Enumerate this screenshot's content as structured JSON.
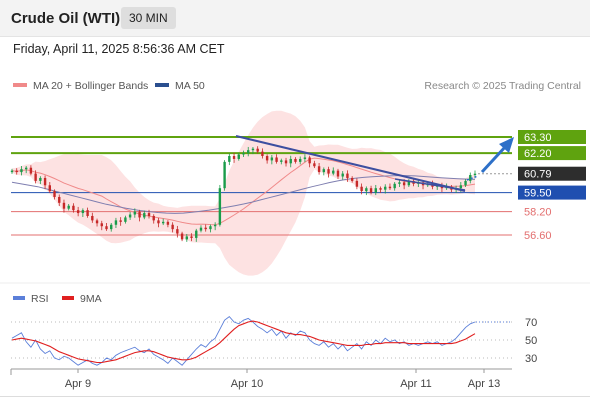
{
  "header": {
    "title": "Crude Oil (WTI)",
    "interval": "30 MIN"
  },
  "datetime": "Friday, April 11, 2025 8:56:36 AM CET",
  "legend": {
    "bb_label": "MA 20 + Bollinger Bands",
    "ma50_label": "MA 50",
    "copyright": "Research © 2025 Trading Central",
    "bb_color": "#f08a8a",
    "ma50_color": "#2b4f8f"
  },
  "rsi_legend": {
    "rsi_label": "RSI",
    "ma_label": "9MA",
    "rsi_color": "#5b7fd9",
    "ma_color": "#e02020"
  },
  "colors": {
    "up": "#1a9c4a",
    "down": "#c62828",
    "resistance": "#5fa30f",
    "support_blue": "#1f4fb0",
    "support_red": "#e36f6f",
    "band_fill": "#fde2e2"
  },
  "chart_data": [
    {
      "type": "candlestick",
      "x_ticks": [
        "Apr 9",
        "Apr 10",
        "Apr 11",
        "Apr 13"
      ],
      "ylim": [
        54.5,
        64.5
      ],
      "current_price": 60.79,
      "levels": [
        {
          "value": 63.3,
          "label": "63.30",
          "kind": "resistance"
        },
        {
          "value": 62.2,
          "label": "62.20",
          "kind": "resistance"
        },
        {
          "value": 59.5,
          "label": "59.50",
          "kind": "pivot"
        },
        {
          "value": 58.2,
          "label": "58.20",
          "kind": "support"
        },
        {
          "value": 56.6,
          "label": "56.60",
          "kind": "support"
        }
      ],
      "closes": [
        61.0,
        60.9,
        61.1,
        61.2,
        60.8,
        60.3,
        60.5,
        60.0,
        59.6,
        59.2,
        58.8,
        58.4,
        58.6,
        58.3,
        58.1,
        58.3,
        57.9,
        57.6,
        57.4,
        57.2,
        57.0,
        57.3,
        57.6,
        57.5,
        57.8,
        58.0,
        58.2,
        57.8,
        58.1,
        57.9,
        57.6,
        57.4,
        57.5,
        57.3,
        57.0,
        56.7,
        56.3,
        56.5,
        56.4,
        56.9,
        57.1,
        57.0,
        57.2,
        57.3,
        59.8,
        61.6,
        62.0,
        61.8,
        62.1,
        62.2,
        62.4,
        62.5,
        62.3,
        62.0,
        61.7,
        61.9,
        61.6,
        61.7,
        61.5,
        61.8,
        61.6,
        61.8,
        61.9,
        61.5,
        61.3,
        60.9,
        61.1,
        60.8,
        61.0,
        60.6,
        60.8,
        60.5,
        60.3,
        59.9,
        59.6,
        59.8,
        59.5,
        59.8,
        59.7,
        59.9,
        59.8,
        60.1,
        60.2,
        60.0,
        60.3,
        60.1,
        60.2,
        60.0,
        60.1,
        59.9,
        60.0,
        59.8,
        59.9,
        59.7,
        59.8,
        60.0,
        60.3,
        60.7,
        60.79
      ],
      "ma50": [
        60.2,
        60.1,
        60.0,
        59.9,
        59.75,
        59.6,
        59.45,
        59.3,
        59.15,
        59.0,
        58.85,
        58.7,
        58.58,
        58.46,
        58.36,
        58.27,
        58.2,
        58.14,
        58.1,
        58.08,
        58.1,
        58.15,
        58.22,
        58.3,
        58.4,
        58.5,
        58.6,
        58.72,
        58.85,
        59.0,
        59.15,
        59.3,
        59.45,
        59.6,
        59.75,
        59.9,
        60.04,
        60.18,
        60.3,
        60.4,
        60.48,
        60.54,
        60.58,
        60.62,
        60.64,
        60.66,
        60.66,
        60.64,
        60.6,
        60.56,
        60.52,
        60.48,
        60.45,
        60.42,
        60.4
      ],
      "rsi": {
        "levels": [
          70,
          50,
          30
        ],
        "rsi_values": [
          52,
          55,
          58,
          48,
          42,
          50,
          40,
          35,
          38,
          30,
          28,
          32,
          30,
          26,
          22,
          25,
          28,
          24,
          22,
          25,
          30,
          28,
          33,
          36,
          38,
          40,
          42,
          38,
          36,
          40,
          34,
          31,
          28,
          24,
          30,
          26,
          22,
          28,
          34,
          40,
          45,
          42,
          48,
          52,
          62,
          72,
          76,
          70,
          68,
          72,
          74,
          70,
          65,
          62,
          58,
          62,
          55,
          60,
          52,
          58,
          55,
          60,
          58,
          50,
          46,
          44,
          48,
          42,
          46,
          40,
          45,
          38,
          42,
          46,
          40,
          48,
          44,
          50,
          46,
          52,
          48,
          50,
          46,
          48,
          44,
          46,
          44,
          46,
          48,
          46,
          48,
          44,
          46,
          48,
          52,
          58,
          64,
          68,
          70
        ],
        "ma_values": [
          50,
          51,
          52,
          51,
          50,
          49,
          47,
          45,
          43,
          40,
          37,
          35,
          33,
          31,
          29,
          28,
          27,
          26,
          25,
          25,
          26,
          27,
          28,
          30,
          32,
          34,
          36,
          37,
          38,
          38,
          37,
          35,
          33,
          31,
          30,
          29,
          28,
          28,
          29,
          31,
          34,
          37,
          40,
          43,
          47,
          52,
          57,
          62,
          66,
          68,
          70,
          71,
          70,
          68,
          66,
          64,
          62,
          60,
          58,
          57,
          56,
          56,
          55,
          54,
          52,
          50,
          49,
          48,
          47,
          46,
          45,
          44,
          44,
          44,
          44,
          45,
          45,
          46,
          46,
          47,
          47,
          47,
          47,
          47,
          46,
          46,
          46,
          46,
          46,
          46,
          46,
          46,
          46,
          46,
          47,
          49,
          51,
          54,
          57
        ]
      }
    }
  ]
}
